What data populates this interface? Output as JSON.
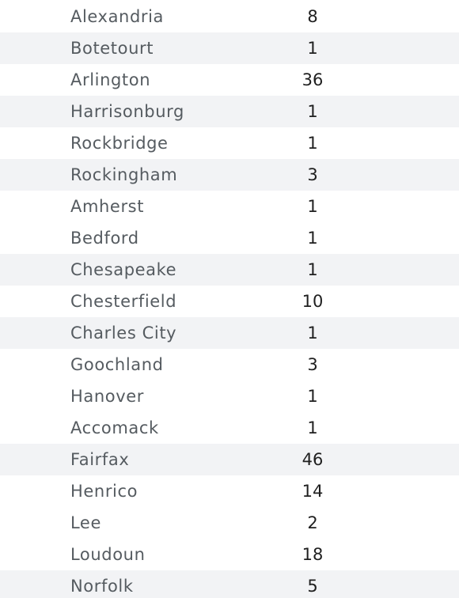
{
  "rows": [
    {
      "name": "Alexandria",
      "count": "8"
    },
    {
      "name": "Botetourt",
      "count": "1"
    },
    {
      "name": "Arlington",
      "count": "36"
    },
    {
      "name": "Harrisonburg",
      "count": "1"
    },
    {
      "name": "Rockbridge",
      "count": "1"
    },
    {
      "name": "Rockingham",
      "count": "3"
    },
    {
      "name": "Amherst",
      "count": "1"
    },
    {
      "name": "Bedford",
      "count": "1"
    },
    {
      "name": "Chesapeake",
      "count": "1"
    },
    {
      "name": "Chesterfield",
      "count": "10"
    },
    {
      "name": "Charles City",
      "count": "1"
    },
    {
      "name": "Goochland",
      "count": "3"
    },
    {
      "name": "Hanover",
      "count": "1"
    },
    {
      "name": "Accomack",
      "count": "1"
    },
    {
      "name": "Fairfax",
      "count": "46"
    },
    {
      "name": "Henrico",
      "count": "14"
    },
    {
      "name": "Lee",
      "count": "2"
    },
    {
      "name": "Loudoun",
      "count": "18"
    },
    {
      "name": "Norfolk",
      "count": "5"
    }
  ],
  "colors": {
    "row_shade": "#f2f3f5",
    "name_text": "#555b60",
    "count_text": "#1f1f1f"
  }
}
